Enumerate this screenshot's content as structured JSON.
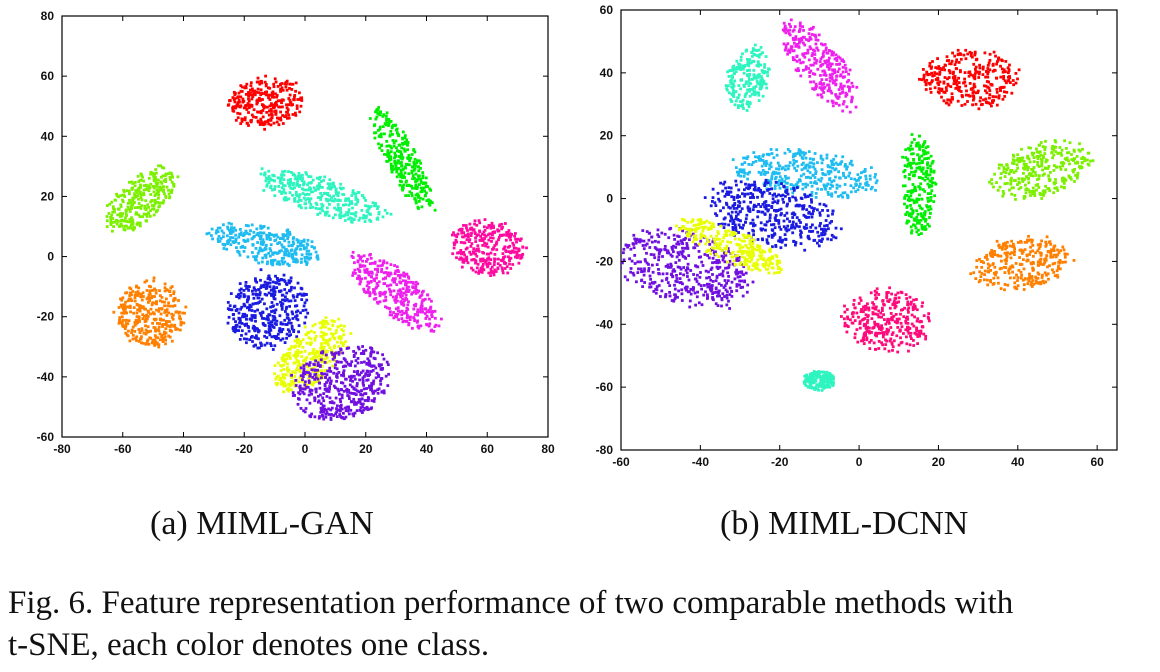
{
  "chart_data": [
    {
      "type": "scatter",
      "title": "",
      "xlabel": "",
      "ylabel": "",
      "xlim": [
        -80,
        80
      ],
      "ylim": [
        -60,
        80
      ],
      "xticks": [
        -80,
        -60,
        -40,
        -20,
        0,
        20,
        40,
        60,
        80
      ],
      "yticks": [
        -60,
        -40,
        -20,
        0,
        20,
        40,
        60,
        80
      ],
      "grid": false,
      "clusters": [
        {
          "color": "#ff0000",
          "cx": -13,
          "cy": 51,
          "rx": 12,
          "ry": 8,
          "angle": 10
        },
        {
          "color": "#00ee00",
          "cx": 32,
          "cy": 32,
          "rx": 19,
          "ry": 5,
          "angle": -62
        },
        {
          "color": "#2ef5c0",
          "cx": 6,
          "cy": 20,
          "rx": 22,
          "ry": 6,
          "angle": -18
        },
        {
          "color": "#7cf000",
          "cx": -54,
          "cy": 19,
          "rx": 14,
          "ry": 7,
          "angle": 40
        },
        {
          "color": "#1ebcf0",
          "cx": -13,
          "cy": 4,
          "rx": 18,
          "ry": 6,
          "angle": -12
        },
        {
          "color": "#ff0aa0",
          "cx": 60,
          "cy": 3,
          "rx": 12,
          "ry": 9,
          "angle": -15
        },
        {
          "color": "#ee20ee",
          "cx": 30,
          "cy": -12,
          "rx": 18,
          "ry": 7,
          "angle": -40
        },
        {
          "color": "#ff8000",
          "cx": -51,
          "cy": -19,
          "rx": 11,
          "ry": 11,
          "angle": 0
        },
        {
          "color": "#1a1ae0",
          "cx": -12,
          "cy": -18,
          "rx": 13,
          "ry": 12,
          "angle": 20
        },
        {
          "color": "#e8ff00",
          "cx": 2,
          "cy": -33,
          "rx": 15,
          "ry": 8,
          "angle": 45
        },
        {
          "color": "#7010e0",
          "cx": 12,
          "cy": -42,
          "rx": 16,
          "ry": 12,
          "angle": 20
        }
      ]
    },
    {
      "type": "scatter",
      "title": "",
      "xlabel": "",
      "ylabel": "",
      "xlim": [
        -60,
        65
      ],
      "ylim": [
        -80,
        60
      ],
      "xticks": [
        -60,
        -40,
        -20,
        0,
        20,
        40,
        60
      ],
      "yticks": [
        -80,
        -60,
        -40,
        -20,
        0,
        20,
        40,
        60
      ],
      "grid": false,
      "clusters": [
        {
          "color": "#2ef5c0",
          "cx": -28,
          "cy": 38,
          "rx": 10,
          "ry": 5,
          "angle": 80
        },
        {
          "color": "#ee20ee",
          "cx": -10,
          "cy": 42,
          "rx": 16,
          "ry": 6,
          "angle": -60
        },
        {
          "color": "#ff0000",
          "cx": 28,
          "cy": 38,
          "rx": 12,
          "ry": 9,
          "angle": 0
        },
        {
          "color": "#1ebcf0",
          "cx": -13,
          "cy": 8,
          "rx": 18,
          "ry": 7,
          "angle": -10
        },
        {
          "color": "#00ee00",
          "cx": 15,
          "cy": 4,
          "rx": 16,
          "ry": 4,
          "angle": 90
        },
        {
          "color": "#7cf000",
          "cx": 46,
          "cy": 9,
          "rx": 13,
          "ry": 8,
          "angle": 25
        },
        {
          "color": "#1a1ae0",
          "cx": -22,
          "cy": -5,
          "rx": 17,
          "ry": 10,
          "angle": -20
        },
        {
          "color": "#7010e0",
          "cx": -44,
          "cy": -22,
          "rx": 17,
          "ry": 11,
          "angle": -25
        },
        {
          "color": "#e8ff00",
          "cx": -32,
          "cy": -15,
          "rx": 16,
          "ry": 5,
          "angle": -30
        },
        {
          "color": "#ff8000",
          "cx": 41,
          "cy": -21,
          "rx": 12,
          "ry": 8,
          "angle": 15
        },
        {
          "color": "#ff0a7a",
          "cx": 7,
          "cy": -39,
          "rx": 11,
          "ry": 10,
          "angle": 0
        },
        {
          "color": "#2ef5c0",
          "cx": -10,
          "cy": -58,
          "rx": 4,
          "ry": 3,
          "angle": 0
        }
      ]
    }
  ],
  "captions": {
    "a": "(a)  MIML-GAN",
    "b": "(b)  MIML-DCNN"
  },
  "figure_caption": {
    "line1": "Fig. 6.  Feature representation performance of two comparable methods with",
    "line2": "t-SNE, each color denotes one class."
  }
}
